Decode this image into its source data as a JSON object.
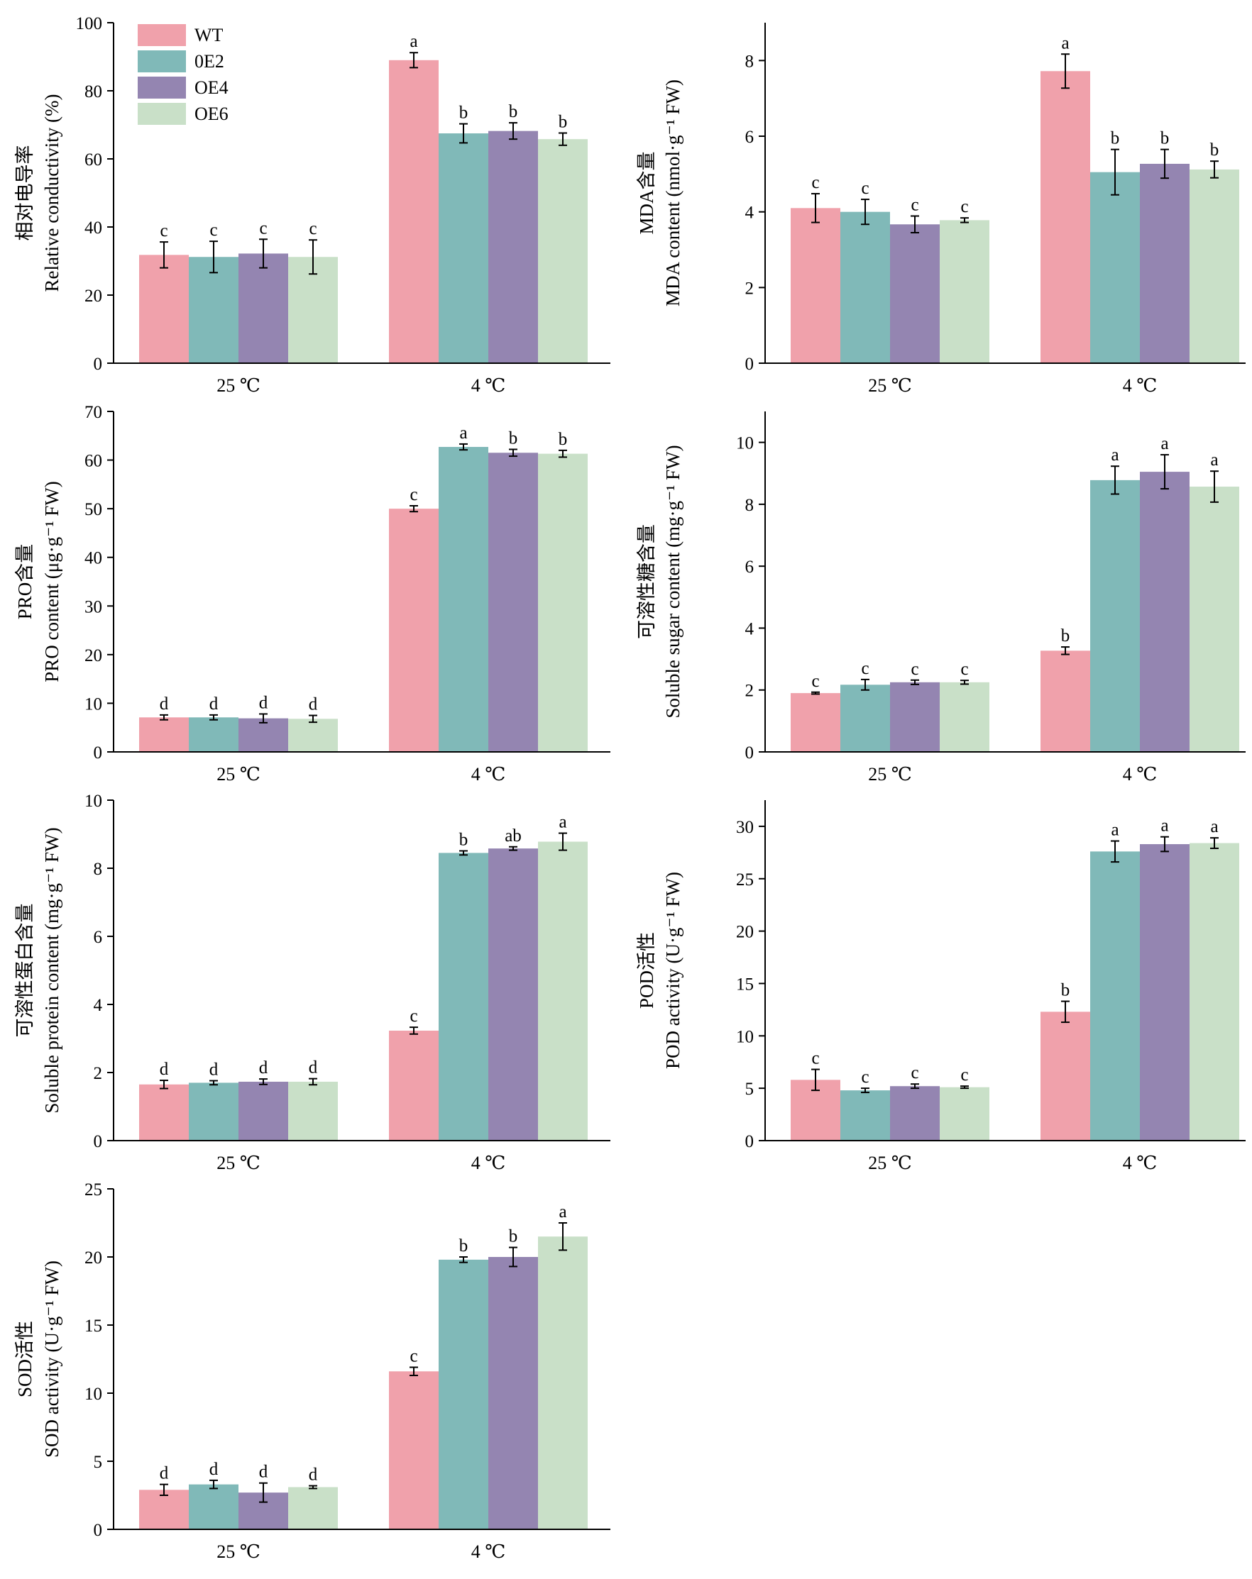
{
  "colors": {
    "WT": "#f0a1ab",
    "0E2": "#80b9b8",
    "OE4": "#9485b1",
    "OE6": "#c9e0c8",
    "axis": "#000000"
  },
  "legend": {
    "entries": [
      "WT",
      "0E2",
      "OE4",
      "OE6"
    ],
    "placement": "top-left of panel 1"
  },
  "chart_data": [
    {
      "type": "bar",
      "title": "",
      "ylabel_cn": "相对电导率",
      "ylabel": "Relative conductivity (%)",
      "categories": [
        "25 ℃",
        "4 ℃"
      ],
      "ylim": [
        0,
        100
      ],
      "yticks": [
        0,
        20,
        40,
        60,
        80,
        100
      ],
      "series": [
        {
          "name": "WT",
          "values": [
            31.8,
            89.0
          ],
          "errors": [
            3.8,
            2.2
          ],
          "letters": [
            "c",
            "a"
          ]
        },
        {
          "name": "0E2",
          "values": [
            31.2,
            67.5
          ],
          "errors": [
            4.6,
            2.8
          ],
          "letters": [
            "c",
            "b"
          ]
        },
        {
          "name": "OE4",
          "values": [
            32.2,
            68.2
          ],
          "errors": [
            4.2,
            2.4
          ],
          "letters": [
            "c",
            "b"
          ]
        },
        {
          "name": "OE6",
          "values": [
            31.2,
            65.8
          ],
          "errors": [
            5.0,
            1.8
          ],
          "letters": [
            "c",
            "b"
          ]
        }
      ]
    },
    {
      "type": "bar",
      "title": "",
      "ylabel_cn": "MDA含量",
      "ylabel": "MDA content (nmol·g⁻¹ FW)",
      "categories": [
        "25 ℃",
        "4 ℃"
      ],
      "ylim": [
        0,
        9
      ],
      "yticks": [
        0,
        2,
        4,
        6,
        8
      ],
      "series": [
        {
          "name": "WT",
          "values": [
            4.1,
            7.72
          ],
          "errors": [
            0.38,
            0.45
          ],
          "letters": [
            "c",
            "a"
          ]
        },
        {
          "name": "0E2",
          "values": [
            4.0,
            5.05
          ],
          "errors": [
            0.33,
            0.6
          ],
          "letters": [
            "c",
            "b"
          ]
        },
        {
          "name": "OE4",
          "values": [
            3.67,
            5.27
          ],
          "errors": [
            0.22,
            0.38
          ],
          "letters": [
            "c",
            "b"
          ]
        },
        {
          "name": "OE6",
          "values": [
            3.78,
            5.12
          ],
          "errors": [
            0.06,
            0.22
          ],
          "letters": [
            "c",
            "b"
          ]
        }
      ]
    },
    {
      "type": "bar",
      "title": "",
      "ylabel_cn": "PRO含量",
      "ylabel": "PRO content (μg·g⁻¹ FW)",
      "categories": [
        "25 ℃",
        "4 ℃"
      ],
      "ylim": [
        0,
        70
      ],
      "yticks": [
        0,
        10,
        20,
        30,
        40,
        50,
        60,
        70
      ],
      "series": [
        {
          "name": "WT",
          "values": [
            7.1,
            50.0
          ],
          "errors": [
            0.5,
            0.6
          ],
          "letters": [
            "d",
            "c"
          ]
        },
        {
          "name": "0E2",
          "values": [
            7.1,
            62.7
          ],
          "errors": [
            0.5,
            0.6
          ],
          "letters": [
            "d",
            "a"
          ]
        },
        {
          "name": "OE4",
          "values": [
            6.9,
            61.5
          ],
          "errors": [
            0.9,
            0.7
          ],
          "letters": [
            "d",
            "b"
          ]
        },
        {
          "name": "OE6",
          "values": [
            6.8,
            61.3
          ],
          "errors": [
            0.7,
            0.7
          ],
          "letters": [
            "d",
            "b"
          ]
        }
      ]
    },
    {
      "type": "bar",
      "title": "",
      "ylabel_cn": "可溶性糖含量",
      "ylabel": "Soluble sugar content (mg·g⁻¹ FW)",
      "categories": [
        "25 ℃",
        "4 ℃"
      ],
      "ylim": [
        0,
        11
      ],
      "yticks": [
        0,
        2,
        4,
        6,
        8,
        10
      ],
      "series": [
        {
          "name": "WT",
          "values": [
            1.9,
            3.27
          ],
          "errors": [
            0.03,
            0.12
          ],
          "letters": [
            "c",
            "b"
          ]
        },
        {
          "name": "0E2",
          "values": [
            2.17,
            8.78
          ],
          "errors": [
            0.17,
            0.45
          ],
          "letters": [
            "c",
            "a"
          ]
        },
        {
          "name": "OE4",
          "values": [
            2.25,
            9.05
          ],
          "errors": [
            0.07,
            0.55
          ],
          "letters": [
            "c",
            "a"
          ]
        },
        {
          "name": "OE6",
          "values": [
            2.25,
            8.57
          ],
          "errors": [
            0.06,
            0.5
          ],
          "letters": [
            "c",
            "a"
          ]
        }
      ]
    },
    {
      "type": "bar",
      "title": "",
      "ylabel_cn": "可溶性蛋白含量",
      "ylabel": "Soluble protein content (mg·g⁻¹ FW)",
      "categories": [
        "25 ℃",
        "4 ℃"
      ],
      "ylim": [
        0,
        10
      ],
      "yticks": [
        0,
        2,
        4,
        6,
        8,
        10
      ],
      "series": [
        {
          "name": "WT",
          "values": [
            1.65,
            3.23
          ],
          "errors": [
            0.12,
            0.1
          ],
          "letters": [
            "d",
            "c"
          ]
        },
        {
          "name": "0E2",
          "values": [
            1.7,
            8.45
          ],
          "errors": [
            0.06,
            0.06
          ],
          "letters": [
            "d",
            "b"
          ]
        },
        {
          "name": "OE4",
          "values": [
            1.73,
            8.58
          ],
          "errors": [
            0.08,
            0.05
          ],
          "letters": [
            "d",
            "ab"
          ]
        },
        {
          "name": "OE6",
          "values": [
            1.73,
            8.78
          ],
          "errors": [
            0.09,
            0.25
          ],
          "letters": [
            "d",
            "a"
          ]
        }
      ]
    },
    {
      "type": "bar",
      "title": "",
      "ylabel_cn": "POD活性",
      "ylabel": "POD activity (U·g⁻¹ FW)",
      "categories": [
        "25 ℃",
        "4 ℃"
      ],
      "ylim": [
        0,
        32.5
      ],
      "yticks": [
        0,
        5,
        10,
        15,
        20,
        25,
        30
      ],
      "series": [
        {
          "name": "WT",
          "values": [
            5.8,
            12.3
          ],
          "errors": [
            1.0,
            1.0
          ],
          "letters": [
            "c",
            "b"
          ]
        },
        {
          "name": "0E2",
          "values": [
            4.8,
            27.6
          ],
          "errors": [
            0.2,
            1.0
          ],
          "letters": [
            "c",
            "a"
          ]
        },
        {
          "name": "OE4",
          "values": [
            5.2,
            28.3
          ],
          "errors": [
            0.2,
            0.7
          ],
          "letters": [
            "c",
            "a"
          ]
        },
        {
          "name": "OE6",
          "values": [
            5.1,
            28.4
          ],
          "errors": [
            0.1,
            0.5
          ],
          "letters": [
            "c",
            "a"
          ]
        }
      ]
    },
    {
      "type": "bar",
      "title": "",
      "ylabel_cn": "SOD活性",
      "ylabel": "SOD activity (U·g⁻¹ FW)",
      "categories": [
        "25 ℃",
        "4 ℃"
      ],
      "ylim": [
        0,
        25
      ],
      "yticks": [
        0,
        5,
        10,
        15,
        20,
        25
      ],
      "series": [
        {
          "name": "WT",
          "values": [
            2.9,
            11.6
          ],
          "errors": [
            0.4,
            0.3
          ],
          "letters": [
            "d",
            "c"
          ]
        },
        {
          "name": "0E2",
          "values": [
            3.3,
            19.8
          ],
          "errors": [
            0.3,
            0.2
          ],
          "letters": [
            "d",
            "b"
          ]
        },
        {
          "name": "OE4",
          "values": [
            2.7,
            20.0
          ],
          "errors": [
            0.7,
            0.7
          ],
          "letters": [
            "d",
            "b"
          ]
        },
        {
          "name": "OE6",
          "values": [
            3.1,
            21.5
          ],
          "errors": [
            0.1,
            1.0
          ],
          "letters": [
            "d",
            "a"
          ]
        }
      ]
    }
  ]
}
